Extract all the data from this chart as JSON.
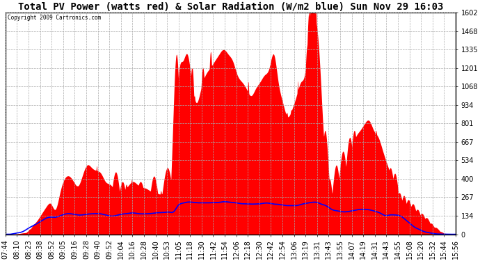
{
  "title": "Total PV Power (watts red) & Solar Radiation (W/m2 blue) Sun Nov 29 16:03",
  "copyright": "Copyright 2009 Cartronics.com",
  "y_max": 1601.7,
  "y_min": 0.0,
  "y_ticks": [
    0.0,
    133.5,
    266.9,
    400.4,
    533.9,
    667.4,
    800.8,
    934.3,
    1067.8,
    1201.2,
    1334.7,
    1468.2,
    1601.7
  ],
  "x_labels": [
    "07:44",
    "08:10",
    "08:23",
    "08:38",
    "08:52",
    "09:05",
    "09:16",
    "09:28",
    "09:40",
    "09:52",
    "10:04",
    "10:16",
    "10:28",
    "10:40",
    "10:53",
    "11:05",
    "11:18",
    "11:30",
    "11:42",
    "11:54",
    "12:06",
    "12:18",
    "12:30",
    "12:42",
    "12:54",
    "13:06",
    "13:19",
    "13:31",
    "13:43",
    "13:55",
    "14:07",
    "14:19",
    "14:31",
    "14:43",
    "14:55",
    "15:08",
    "15:20",
    "15:32",
    "15:44",
    "15:56"
  ],
  "background_color": "#ffffff",
  "plot_bg_color": "#ffffff",
  "grid_color": "#aaaaaa",
  "red_color": "#ff0000",
  "blue_color": "#0000ff",
  "title_fontsize": 10,
  "tick_fontsize": 7,
  "pv_data": [
    0,
    0,
    2,
    5,
    10,
    20,
    60,
    100,
    150,
    200,
    220,
    180,
    300,
    400,
    420,
    380,
    350,
    430,
    500,
    480,
    460,
    440,
    380,
    360,
    320,
    280,
    310,
    350,
    380,
    360,
    340,
    330,
    310,
    300,
    290,
    310,
    330,
    380,
    1100,
    1250,
    1300,
    1100,
    950,
    1050,
    1150,
    1200,
    1250,
    1300,
    1334,
    1300,
    1250,
    1150,
    1100,
    1050,
    1000,
    1050,
    1100,
    1150,
    1200,
    1300,
    1100,
    950,
    850,
    900,
    1000,
    1100,
    1200,
    1601,
    1601,
    1300,
    700,
    400,
    200,
    300,
    400,
    500,
    600,
    700,
    750,
    800,
    820,
    750,
    700,
    600,
    500,
    400,
    300,
    250,
    200,
    150,
    120,
    100,
    80,
    60,
    40,
    20,
    10,
    5,
    2,
    0
  ],
  "solar_data": [
    0,
    0,
    5,
    10,
    20,
    40,
    60,
    80,
    100,
    120,
    130,
    130,
    135,
    138,
    140,
    140,
    138,
    140,
    145,
    148,
    150,
    150,
    148,
    148,
    147,
    147,
    148,
    150,
    155,
    153,
    150,
    148,
    147,
    147,
    146,
    147,
    148,
    150,
    200,
    220,
    225,
    220,
    215,
    218,
    222,
    225,
    228,
    230,
    235,
    233,
    230,
    225,
    220,
    218,
    216,
    218,
    220,
    225,
    228,
    230,
    225,
    220,
    215,
    218,
    220,
    225,
    228,
    230,
    232,
    220,
    190,
    170,
    160,
    165,
    170,
    175,
    178,
    180,
    182,
    182,
    180,
    175,
    168,
    160,
    150,
    138,
    125,
    110,
    90,
    70,
    50,
    35,
    20,
    12,
    6,
    2,
    1,
    0,
    0,
    0
  ]
}
